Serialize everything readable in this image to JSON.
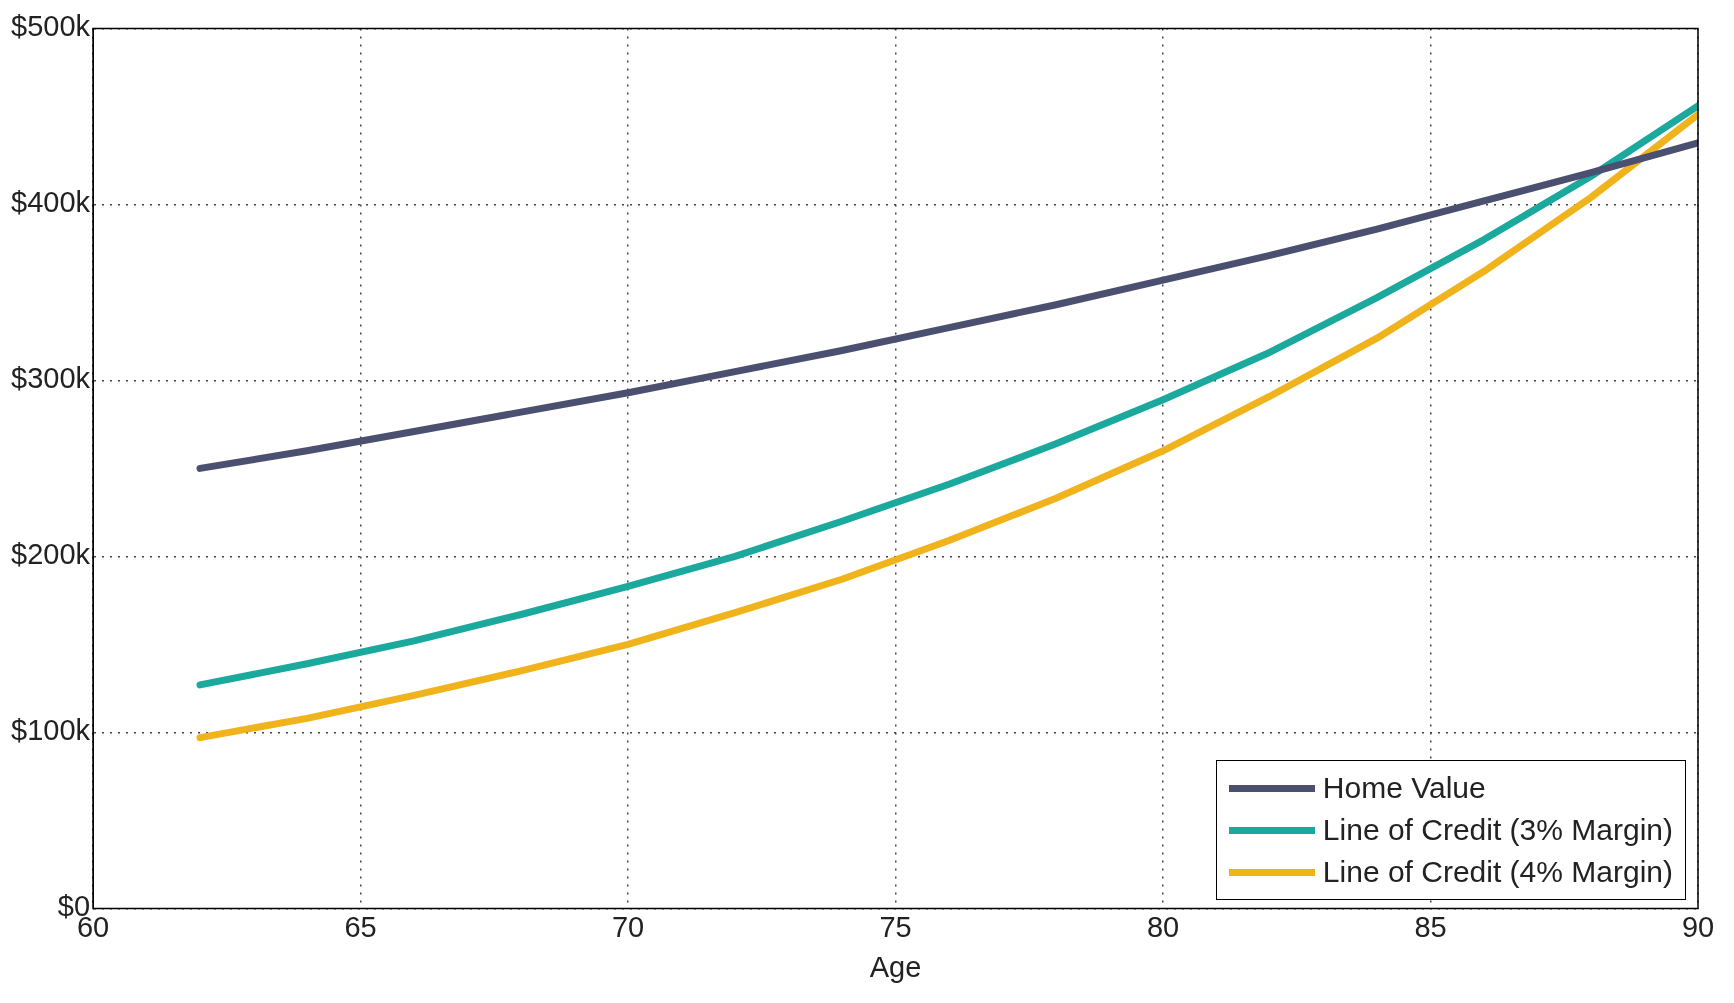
{
  "chart_data": {
    "type": "line",
    "xlabel": "Age",
    "x": [
      62,
      64,
      66,
      68,
      70,
      72,
      74,
      76,
      78,
      80,
      82,
      84,
      86,
      88,
      90
    ],
    "series": [
      {
        "name": "Home Value",
        "color": "#4b4f70",
        "values": [
          250,
          260,
          271,
          282,
          293,
          305,
          317,
          330,
          343,
          357,
          371,
          386,
          402,
          418,
          435
        ]
      },
      {
        "name": "Line of Credit (3% Margin)",
        "color": "#1aa99c",
        "values": [
          127,
          139,
          152,
          167,
          183,
          200,
          220,
          241,
          264,
          289,
          316,
          347,
          380,
          416,
          456
        ]
      },
      {
        "name": "Line of Credit (4% Margin)",
        "color": "#f0b31c",
        "values": [
          97,
          108,
          121,
          135,
          150,
          168,
          187,
          209,
          233,
          260,
          291,
          324,
          362,
          404,
          451
        ]
      }
    ],
    "xlim": [
      60,
      90
    ],
    "xticks": [
      60,
      65,
      70,
      75,
      80,
      85,
      90
    ],
    "ylim": [
      0,
      500
    ],
    "yticks": [
      {
        "value": 0,
        "label": "$0"
      },
      {
        "value": 100,
        "label": "$100k"
      },
      {
        "value": 200,
        "label": "$200k"
      },
      {
        "value": 300,
        "label": "$300k"
      },
      {
        "value": 400,
        "label": "$400k"
      },
      {
        "value": 500,
        "label": "$500k"
      }
    ],
    "grid": true,
    "legend": "bottom right",
    "marker": "none",
    "line_style": "solid"
  }
}
